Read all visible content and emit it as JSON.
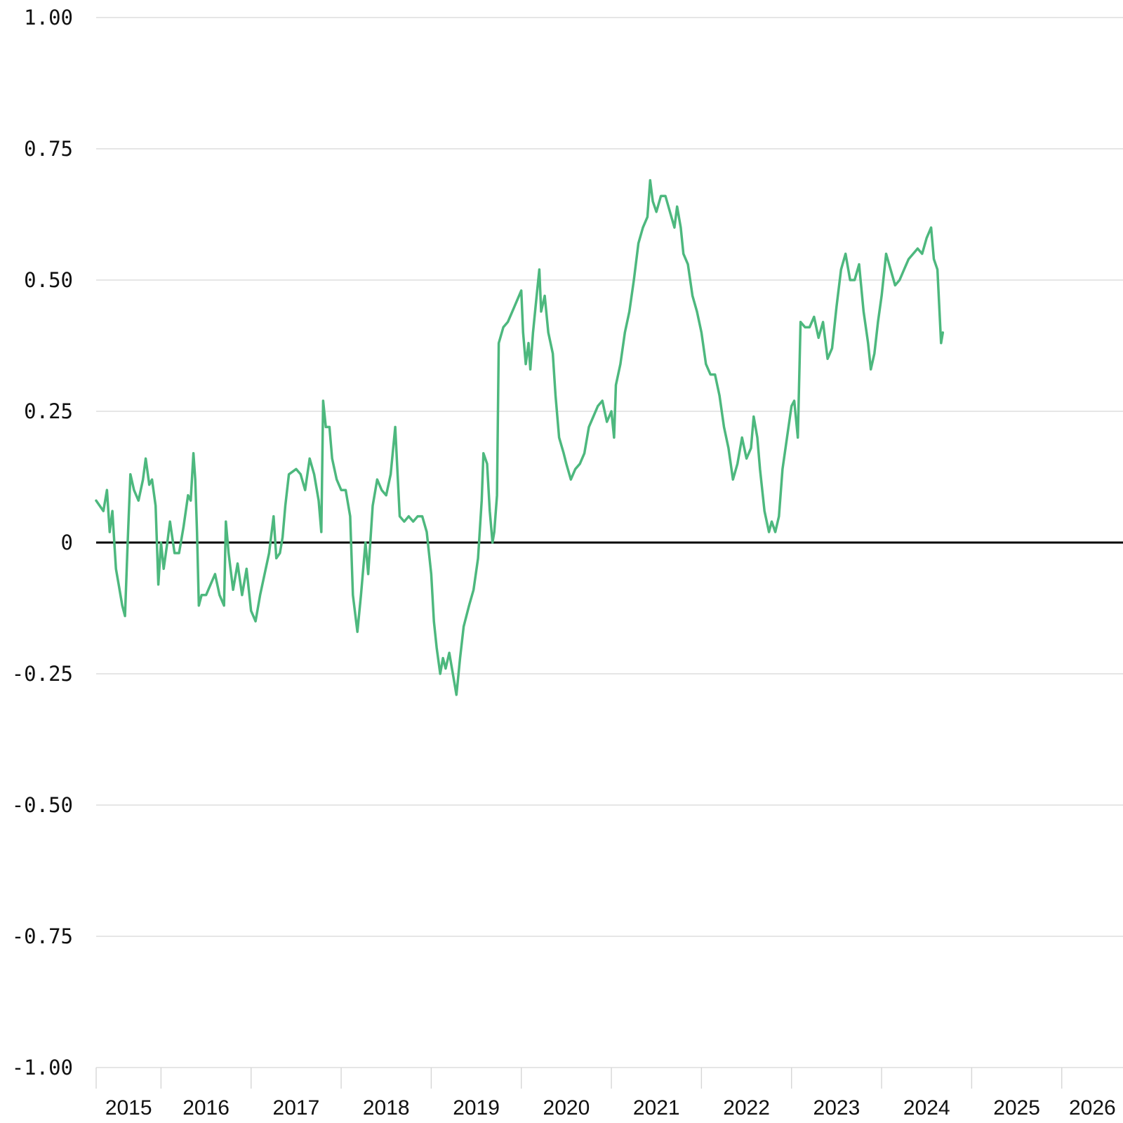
{
  "chart_data": {
    "type": "line",
    "title": "",
    "xlabel": "",
    "ylabel": "",
    "ylim": [
      -1.0,
      1.0
    ],
    "grid": true,
    "y_ticks": [
      {
        "value": 1.0,
        "label": "1.00"
      },
      {
        "value": 0.75,
        "label": "0.75"
      },
      {
        "value": 0.5,
        "label": "0.50"
      },
      {
        "value": 0.25,
        "label": "0.25"
      },
      {
        "value": 0.0,
        "label": "0"
      },
      {
        "value": -0.25,
        "label": "-0.25"
      },
      {
        "value": -0.5,
        "label": "-0.50"
      },
      {
        "value": -0.75,
        "label": "-0.75"
      },
      {
        "value": -1.0,
        "label": "-1.00"
      }
    ],
    "x_tick_labels": [
      "2015",
      "2016",
      "2017",
      "2018",
      "2019",
      "2020",
      "2021",
      "2022",
      "2023",
      "2024",
      "2025",
      "2026"
    ],
    "x_tick_years": [
      2015,
      2016,
      2017,
      2018,
      2019,
      2020,
      2021,
      2022,
      2023,
      2024,
      2025,
      2026
    ],
    "xlim": [
      2014.28,
      2025.68
    ],
    "baseline": 0,
    "colors": {
      "series": "#4db87e",
      "baseline": "#000000",
      "grid": "#d6d6d6"
    },
    "series": [
      {
        "values": [
          [
            2014.28,
            0.08
          ],
          [
            2014.32,
            0.07
          ],
          [
            2014.36,
            0.06
          ],
          [
            2014.4,
            0.1
          ],
          [
            2014.43,
            0.02
          ],
          [
            2014.46,
            0.06
          ],
          [
            2014.5,
            -0.05
          ],
          [
            2014.53,
            -0.08
          ],
          [
            2014.57,
            -0.12
          ],
          [
            2014.6,
            -0.14
          ],
          [
            2014.63,
            0.0
          ],
          [
            2014.66,
            0.13
          ],
          [
            2014.7,
            0.1
          ],
          [
            2014.75,
            0.08
          ],
          [
            2014.8,
            0.12
          ],
          [
            2014.83,
            0.16
          ],
          [
            2014.87,
            0.11
          ],
          [
            2014.9,
            0.12
          ],
          [
            2014.94,
            0.07
          ],
          [
            2014.97,
            -0.08
          ],
          [
            2015.0,
            0.0
          ],
          [
            2015.03,
            -0.05
          ],
          [
            2015.07,
            0.0
          ],
          [
            2015.1,
            0.04
          ],
          [
            2015.15,
            -0.02
          ],
          [
            2015.2,
            -0.02
          ],
          [
            2015.25,
            0.03
          ],
          [
            2015.3,
            0.09
          ],
          [
            2015.33,
            0.08
          ],
          [
            2015.36,
            0.17
          ],
          [
            2015.38,
            0.12
          ],
          [
            2015.4,
            0.02
          ],
          [
            2015.42,
            -0.12
          ],
          [
            2015.45,
            -0.1
          ],
          [
            2015.5,
            -0.1
          ],
          [
            2015.55,
            -0.08
          ],
          [
            2015.6,
            -0.06
          ],
          [
            2015.65,
            -0.1
          ],
          [
            2015.7,
            -0.12
          ],
          [
            2015.72,
            0.04
          ],
          [
            2015.75,
            -0.02
          ],
          [
            2015.8,
            -0.09
          ],
          [
            2015.85,
            -0.04
          ],
          [
            2015.9,
            -0.1
          ],
          [
            2015.95,
            -0.05
          ],
          [
            2016.0,
            -0.13
          ],
          [
            2016.05,
            -0.15
          ],
          [
            2016.1,
            -0.1
          ],
          [
            2016.15,
            -0.06
          ],
          [
            2016.2,
            -0.02
          ],
          [
            2016.25,
            0.05
          ],
          [
            2016.28,
            -0.03
          ],
          [
            2016.32,
            -0.02
          ],
          [
            2016.35,
            0.01
          ],
          [
            2016.38,
            0.07
          ],
          [
            2016.42,
            0.13
          ],
          [
            2016.5,
            0.14
          ],
          [
            2016.55,
            0.13
          ],
          [
            2016.6,
            0.1
          ],
          [
            2016.65,
            0.16
          ],
          [
            2016.7,
            0.13
          ],
          [
            2016.75,
            0.08
          ],
          [
            2016.78,
            0.02
          ],
          [
            2016.8,
            0.27
          ],
          [
            2016.83,
            0.22
          ],
          [
            2016.87,
            0.22
          ],
          [
            2016.9,
            0.16
          ],
          [
            2016.95,
            0.12
          ],
          [
            2017.0,
            0.1
          ],
          [
            2017.05,
            0.1
          ],
          [
            2017.1,
            0.05
          ],
          [
            2017.13,
            -0.1
          ],
          [
            2017.18,
            -0.17
          ],
          [
            2017.22,
            -0.1
          ],
          [
            2017.27,
            0.0
          ],
          [
            2017.3,
            -0.06
          ],
          [
            2017.35,
            0.07
          ],
          [
            2017.4,
            0.12
          ],
          [
            2017.45,
            0.1
          ],
          [
            2017.5,
            0.09
          ],
          [
            2017.55,
            0.13
          ],
          [
            2017.6,
            0.22
          ],
          [
            2017.65,
            0.05
          ],
          [
            2017.7,
            0.04
          ],
          [
            2017.75,
            0.05
          ],
          [
            2017.8,
            0.04
          ],
          [
            2017.85,
            0.05
          ],
          [
            2017.9,
            0.05
          ],
          [
            2017.95,
            0.02
          ],
          [
            2018.0,
            -0.06
          ],
          [
            2018.03,
            -0.15
          ],
          [
            2018.06,
            -0.2
          ],
          [
            2018.1,
            -0.25
          ],
          [
            2018.13,
            -0.22
          ],
          [
            2018.16,
            -0.24
          ],
          [
            2018.2,
            -0.21
          ],
          [
            2018.25,
            -0.26
          ],
          [
            2018.28,
            -0.29
          ],
          [
            2018.32,
            -0.22
          ],
          [
            2018.36,
            -0.16
          ],
          [
            2018.42,
            -0.12
          ],
          [
            2018.47,
            -0.09
          ],
          [
            2018.52,
            -0.03
          ],
          [
            2018.56,
            0.08
          ],
          [
            2018.58,
            0.17
          ],
          [
            2018.62,
            0.15
          ],
          [
            2018.65,
            0.06
          ],
          [
            2018.68,
            0.0
          ],
          [
            2018.7,
            0.02
          ],
          [
            2018.73,
            0.09
          ],
          [
            2018.75,
            0.38
          ],
          [
            2018.8,
            0.41
          ],
          [
            2018.85,
            0.42
          ],
          [
            2018.9,
            0.44
          ],
          [
            2018.95,
            0.46
          ],
          [
            2019.0,
            0.48
          ],
          [
            2019.02,
            0.4
          ],
          [
            2019.05,
            0.34
          ],
          [
            2019.08,
            0.38
          ],
          [
            2019.1,
            0.33
          ],
          [
            2019.13,
            0.4
          ],
          [
            2019.17,
            0.47
          ],
          [
            2019.2,
            0.52
          ],
          [
            2019.22,
            0.44
          ],
          [
            2019.26,
            0.47
          ],
          [
            2019.3,
            0.4
          ],
          [
            2019.35,
            0.36
          ],
          [
            2019.38,
            0.28
          ],
          [
            2019.42,
            0.2
          ],
          [
            2019.47,
            0.17
          ],
          [
            2019.5,
            0.15
          ],
          [
            2019.55,
            0.12
          ],
          [
            2019.6,
            0.14
          ],
          [
            2019.65,
            0.15
          ],
          [
            2019.7,
            0.17
          ],
          [
            2019.75,
            0.22
          ],
          [
            2019.8,
            0.24
          ],
          [
            2019.85,
            0.26
          ],
          [
            2019.9,
            0.27
          ],
          [
            2019.95,
            0.23
          ],
          [
            2020.0,
            0.25
          ],
          [
            2020.03,
            0.2
          ],
          [
            2020.05,
            0.3
          ],
          [
            2020.1,
            0.34
          ],
          [
            2020.15,
            0.4
          ],
          [
            2020.2,
            0.44
          ],
          [
            2020.25,
            0.5
          ],
          [
            2020.3,
            0.57
          ],
          [
            2020.35,
            0.6
          ],
          [
            2020.4,
            0.62
          ],
          [
            2020.43,
            0.69
          ],
          [
            2020.46,
            0.65
          ],
          [
            2020.5,
            0.63
          ],
          [
            2020.55,
            0.66
          ],
          [
            2020.6,
            0.66
          ],
          [
            2020.65,
            0.63
          ],
          [
            2020.7,
            0.6
          ],
          [
            2020.73,
            0.64
          ],
          [
            2020.77,
            0.6
          ],
          [
            2020.8,
            0.55
          ],
          [
            2020.85,
            0.53
          ],
          [
            2020.9,
            0.47
          ],
          [
            2020.95,
            0.44
          ],
          [
            2021.0,
            0.4
          ],
          [
            2021.05,
            0.34
          ],
          [
            2021.1,
            0.32
          ],
          [
            2021.15,
            0.32
          ],
          [
            2021.2,
            0.28
          ],
          [
            2021.25,
            0.22
          ],
          [
            2021.3,
            0.18
          ],
          [
            2021.35,
            0.12
          ],
          [
            2021.4,
            0.15
          ],
          [
            2021.45,
            0.2
          ],
          [
            2021.5,
            0.16
          ],
          [
            2021.55,
            0.18
          ],
          [
            2021.58,
            0.24
          ],
          [
            2021.62,
            0.2
          ],
          [
            2021.65,
            0.14
          ],
          [
            2021.7,
            0.06
          ],
          [
            2021.75,
            0.02
          ],
          [
            2021.78,
            0.04
          ],
          [
            2021.82,
            0.02
          ],
          [
            2021.86,
            0.05
          ],
          [
            2021.9,
            0.14
          ],
          [
            2021.95,
            0.2
          ],
          [
            2022.0,
            0.26
          ],
          [
            2022.03,
            0.27
          ],
          [
            2022.07,
            0.2
          ],
          [
            2022.1,
            0.42
          ],
          [
            2022.15,
            0.41
          ],
          [
            2022.2,
            0.41
          ],
          [
            2022.25,
            0.43
          ],
          [
            2022.3,
            0.39
          ],
          [
            2022.35,
            0.42
          ],
          [
            2022.4,
            0.35
          ],
          [
            2022.45,
            0.37
          ],
          [
            2022.5,
            0.45
          ],
          [
            2022.55,
            0.52
          ],
          [
            2022.6,
            0.55
          ],
          [
            2022.65,
            0.5
          ],
          [
            2022.7,
            0.5
          ],
          [
            2022.75,
            0.53
          ],
          [
            2022.8,
            0.44
          ],
          [
            2022.85,
            0.38
          ],
          [
            2022.88,
            0.33
          ],
          [
            2022.92,
            0.36
          ],
          [
            2022.96,
            0.42
          ],
          [
            2023.0,
            0.47
          ],
          [
            2023.05,
            0.55
          ],
          [
            2023.1,
            0.52
          ],
          [
            2023.15,
            0.49
          ],
          [
            2023.2,
            0.5
          ],
          [
            2023.25,
            0.52
          ],
          [
            2023.3,
            0.54
          ],
          [
            2023.35,
            0.55
          ],
          [
            2023.4,
            0.56
          ],
          [
            2023.45,
            0.55
          ],
          [
            2023.5,
            0.58
          ],
          [
            2023.55,
            0.6
          ],
          [
            2023.58,
            0.54
          ],
          [
            2023.62,
            0.52
          ],
          [
            2023.66,
            0.38
          ],
          [
            2023.68,
            0.4
          ]
        ]
      }
    ]
  }
}
